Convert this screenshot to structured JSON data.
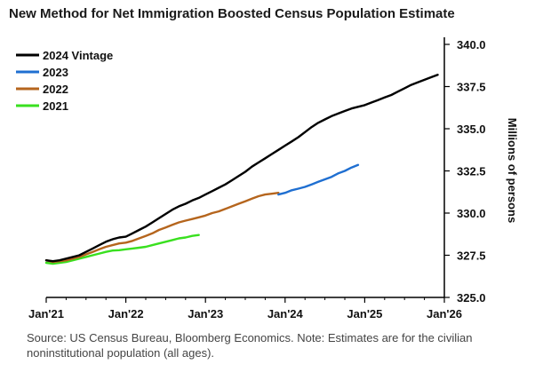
{
  "chart_data": {
    "type": "line",
    "title": "New Method for Net Immigration Boosted Census Population Estimate",
    "xlabel": "",
    "ylabel": "Millions of persons",
    "x_ticks": [
      "Jan'21",
      "Jan'22",
      "Jan'23",
      "Jan'24",
      "Jan'25",
      "Jan'26"
    ],
    "y_ticks": [
      "325.0",
      "327.5",
      "330.0",
      "332.5",
      "335.0",
      "337.5",
      "340.0"
    ],
    "ylim": [
      325.0,
      340.0
    ],
    "xlim": [
      "2021-01",
      "2026-01"
    ],
    "y_axis_side": "right",
    "grid": false,
    "legend_position": "top-left",
    "series": [
      {
        "name": "2024 Vintage",
        "color": "#000000",
        "points": [
          [
            "2021-01",
            327.2
          ],
          [
            "2021-02",
            327.15
          ],
          [
            "2021-03",
            327.2
          ],
          [
            "2021-04",
            327.3
          ],
          [
            "2021-05",
            327.4
          ],
          [
            "2021-06",
            327.5
          ],
          [
            "2021-07",
            327.7
          ],
          [
            "2021-08",
            327.9
          ],
          [
            "2021-09",
            328.1
          ],
          [
            "2021-10",
            328.3
          ],
          [
            "2021-11",
            328.45
          ],
          [
            "2021-12",
            328.55
          ],
          [
            "2022-01",
            328.6
          ],
          [
            "2022-02",
            328.8
          ],
          [
            "2022-03",
            329.0
          ],
          [
            "2022-04",
            329.2
          ],
          [
            "2022-05",
            329.45
          ],
          [
            "2022-06",
            329.7
          ],
          [
            "2022-07",
            329.95
          ],
          [
            "2022-08",
            330.2
          ],
          [
            "2022-09",
            330.4
          ],
          [
            "2022-10",
            330.55
          ],
          [
            "2022-11",
            330.75
          ],
          [
            "2022-12",
            330.9
          ],
          [
            "2023-01",
            331.1
          ],
          [
            "2023-02",
            331.3
          ],
          [
            "2023-03",
            331.5
          ],
          [
            "2023-04",
            331.7
          ],
          [
            "2023-05",
            331.95
          ],
          [
            "2023-06",
            332.2
          ],
          [
            "2023-07",
            332.45
          ],
          [
            "2023-08",
            332.75
          ],
          [
            "2023-09",
            333.0
          ],
          [
            "2023-10",
            333.25
          ],
          [
            "2023-11",
            333.5
          ],
          [
            "2023-12",
            333.75
          ],
          [
            "2024-01",
            334.0
          ],
          [
            "2024-02",
            334.25
          ],
          [
            "2024-03",
            334.5
          ],
          [
            "2024-04",
            334.8
          ],
          [
            "2024-05",
            335.1
          ],
          [
            "2024-06",
            335.35
          ],
          [
            "2024-07",
            335.55
          ],
          [
            "2024-08",
            335.75
          ],
          [
            "2024-09",
            335.9
          ],
          [
            "2024-10",
            336.05
          ],
          [
            "2024-11",
            336.2
          ],
          [
            "2024-12",
            336.3
          ],
          [
            "2025-01",
            336.4
          ],
          [
            "2025-02",
            336.55
          ],
          [
            "2025-03",
            336.7
          ],
          [
            "2025-04",
            336.85
          ],
          [
            "2025-05",
            337.0
          ],
          [
            "2025-06",
            337.2
          ],
          [
            "2025-07",
            337.4
          ],
          [
            "2025-08",
            337.6
          ],
          [
            "2025-09",
            337.75
          ],
          [
            "2025-10",
            337.9
          ],
          [
            "2025-11",
            338.05
          ],
          [
            "2025-12",
            338.2
          ]
        ]
      },
      {
        "name": "2023",
        "color": "#1f6fd1",
        "points": [
          [
            "2023-12",
            331.1
          ],
          [
            "2024-01",
            331.2
          ],
          [
            "2024-02",
            331.35
          ],
          [
            "2024-03",
            331.45
          ],
          [
            "2024-04",
            331.55
          ],
          [
            "2024-05",
            331.7
          ],
          [
            "2024-06",
            331.85
          ],
          [
            "2024-07",
            332.0
          ],
          [
            "2024-08",
            332.15
          ],
          [
            "2024-09",
            332.35
          ],
          [
            "2024-10",
            332.5
          ],
          [
            "2024-11",
            332.7
          ],
          [
            "2024-12",
            332.85
          ]
        ]
      },
      {
        "name": "2022",
        "color": "#b5651d",
        "points": [
          [
            "2021-01",
            327.2
          ],
          [
            "2021-02",
            327.1
          ],
          [
            "2021-03",
            327.15
          ],
          [
            "2021-04",
            327.2
          ],
          [
            "2021-05",
            327.3
          ],
          [
            "2021-06",
            327.4
          ],
          [
            "2021-07",
            327.55
          ],
          [
            "2021-08",
            327.7
          ],
          [
            "2021-09",
            327.85
          ],
          [
            "2021-10",
            328.0
          ],
          [
            "2021-11",
            328.1
          ],
          [
            "2021-12",
            328.2
          ],
          [
            "2022-01",
            328.25
          ],
          [
            "2022-02",
            328.35
          ],
          [
            "2022-03",
            328.5
          ],
          [
            "2022-04",
            328.65
          ],
          [
            "2022-05",
            328.8
          ],
          [
            "2022-06",
            329.0
          ],
          [
            "2022-07",
            329.15
          ],
          [
            "2022-08",
            329.3
          ],
          [
            "2022-09",
            329.45
          ],
          [
            "2022-10",
            329.55
          ],
          [
            "2022-11",
            329.65
          ],
          [
            "2022-12",
            329.75
          ],
          [
            "2023-01",
            329.85
          ],
          [
            "2023-02",
            330.0
          ],
          [
            "2023-03",
            330.1
          ],
          [
            "2023-04",
            330.25
          ],
          [
            "2023-05",
            330.4
          ],
          [
            "2023-06",
            330.55
          ],
          [
            "2023-07",
            330.7
          ],
          [
            "2023-08",
            330.85
          ],
          [
            "2023-09",
            331.0
          ],
          [
            "2023-10",
            331.1
          ],
          [
            "2023-11",
            331.15
          ],
          [
            "2023-12",
            331.2
          ]
        ]
      },
      {
        "name": "2021",
        "color": "#39e01f",
        "points": [
          [
            "2021-01",
            327.05
          ],
          [
            "2021-02",
            327.0
          ],
          [
            "2021-03",
            327.05
          ],
          [
            "2021-04",
            327.1
          ],
          [
            "2021-05",
            327.2
          ],
          [
            "2021-06",
            327.3
          ],
          [
            "2021-07",
            327.4
          ],
          [
            "2021-08",
            327.5
          ],
          [
            "2021-09",
            327.6
          ],
          [
            "2021-10",
            327.7
          ],
          [
            "2021-11",
            327.78
          ],
          [
            "2021-12",
            327.8
          ],
          [
            "2022-01",
            327.85
          ],
          [
            "2022-02",
            327.9
          ],
          [
            "2022-03",
            327.95
          ],
          [
            "2022-04",
            328.0
          ],
          [
            "2022-05",
            328.1
          ],
          [
            "2022-06",
            328.2
          ],
          [
            "2022-07",
            328.3
          ],
          [
            "2022-08",
            328.4
          ],
          [
            "2022-09",
            328.5
          ],
          [
            "2022-10",
            328.55
          ],
          [
            "2022-11",
            328.65
          ],
          [
            "2022-12",
            328.7
          ]
        ]
      }
    ]
  },
  "source_note": "Source: US Census Bureau, Bloomberg Economics. Note: Estimates are for the civilian noninstitutional population (all ages)."
}
